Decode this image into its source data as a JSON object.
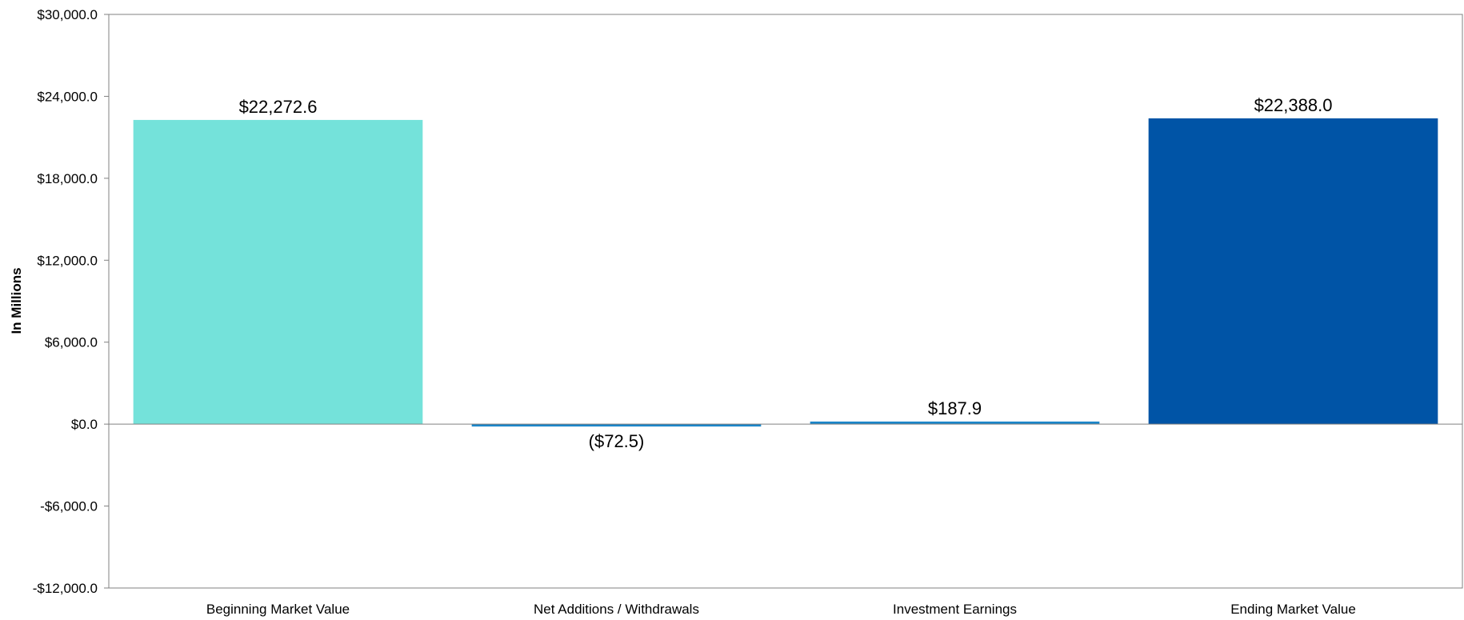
{
  "chart_data": {
    "type": "bar",
    "categories": [
      "Beginning Market Value",
      "Net Additions / Withdrawals",
      "Investment Earnings",
      "Ending Market Value"
    ],
    "values": [
      22272.6,
      -72.5,
      187.9,
      22388.0
    ],
    "data_labels": [
      "$22,272.6",
      "($72.5)",
      "$187.9",
      "$22,388.0"
    ],
    "ylabel": "In Millions",
    "ylim": [
      -12000,
      30000
    ],
    "yticks": [
      30000,
      24000,
      18000,
      12000,
      6000,
      0,
      -6000,
      -12000
    ],
    "ytick_labels": [
      "$30,000.0",
      "$24,000.0",
      "$18,000.0",
      "$12,000.0",
      "$6,000.0",
      "$0.0",
      "-$6,000.0",
      "-$12,000.0"
    ],
    "bar_colors": [
      "#74e2da",
      "#1b86c9",
      "#1b86c9",
      "#0054a6"
    ],
    "grid": false,
    "legend": "none"
  }
}
